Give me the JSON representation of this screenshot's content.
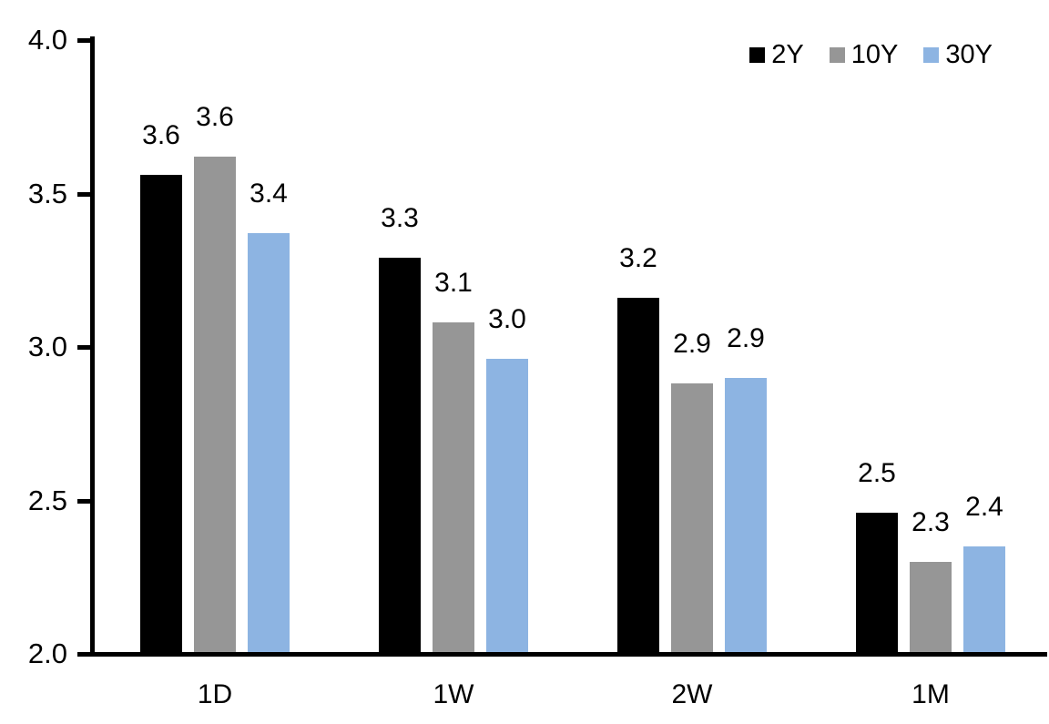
{
  "chart_data": {
    "type": "bar",
    "title": "",
    "xlabel": "",
    "ylabel": "",
    "categories": [
      "1D",
      "1W",
      "2W",
      "1M"
    ],
    "series": [
      {
        "name": "2Y",
        "color": "#000000",
        "values": [
          3.56,
          3.29,
          3.16,
          2.46
        ],
        "labels": [
          "3.6",
          "3.3",
          "3.2",
          "2.5"
        ]
      },
      {
        "name": "10Y",
        "color": "#969696",
        "values": [
          3.62,
          3.08,
          2.88,
          2.3
        ],
        "labels": [
          "3.6",
          "3.1",
          "2.9",
          "2.3"
        ]
      },
      {
        "name": "30Y",
        "color": "#8DB4E2",
        "values": [
          3.37,
          2.96,
          2.9,
          2.35
        ],
        "labels": [
          "3.4",
          "3.0",
          "2.9",
          "2.4"
        ]
      }
    ],
    "ylim": [
      2.0,
      4.0
    ],
    "ytick_labels": [
      "4.0",
      "3.5",
      "3.0",
      "2.5",
      "2.0"
    ],
    "ytick_values": [
      4.0,
      3.5,
      3.0,
      2.5,
      2.0
    ],
    "grid": false,
    "legend_position": "top-right",
    "colors": {
      "axis": "#000000",
      "background": "#ffffff",
      "text": "#000000"
    }
  }
}
